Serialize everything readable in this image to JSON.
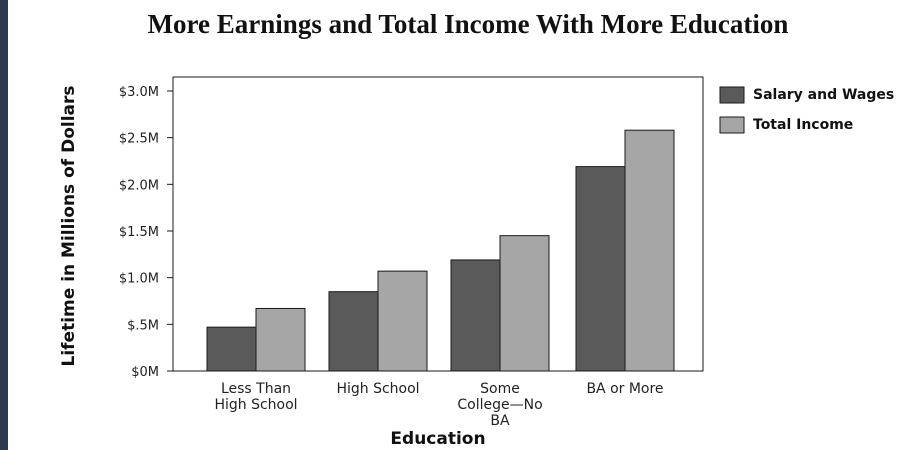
{
  "colors": {
    "frame": "#2b3a4e",
    "salary": "#5a5a5a",
    "total": "#a6a6a6",
    "edge": "#1a1a1a"
  },
  "chart_data": {
    "type": "bar",
    "title": "More Earnings and Total Income With More Education",
    "xlabel": "Education",
    "ylabel": "Lifetime in Millions of Dollars",
    "categories": [
      [
        "Less Than",
        "High School"
      ],
      [
        "High School"
      ],
      [
        "Some",
        "College—No",
        "BA"
      ],
      [
        "BA or More"
      ]
    ],
    "series": [
      {
        "name": "Salary and Wages",
        "values": [
          0.47,
          0.85,
          1.19,
          2.19
        ]
      },
      {
        "name": "Total Income",
        "values": [
          0.67,
          1.07,
          1.45,
          2.58
        ]
      }
    ],
    "ylim": [
      0,
      3.0
    ],
    "yticks": [
      0,
      0.5,
      1.0,
      1.5,
      2.0,
      2.5,
      3.0
    ],
    "ytick_labels": [
      "$0M",
      "$.5M",
      "$1.0M",
      "$1.5M",
      "$2.0M",
      "$2.5M",
      "$3.0M"
    ],
    "legend_position": "right",
    "grid": false
  }
}
